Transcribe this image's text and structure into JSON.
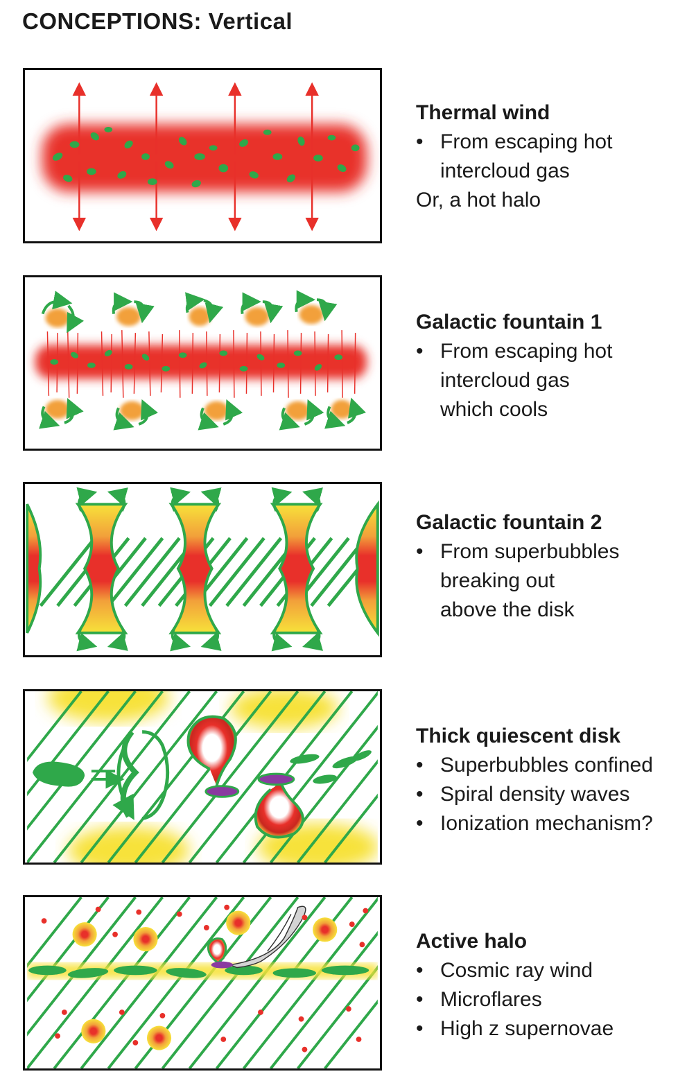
{
  "title": "CONCEPTIONS: Vertical",
  "panels": [
    {
      "heading": "Thermal wind",
      "bullets": [
        "From escaping hot",
        "intercloud gas"
      ],
      "bullet_continuation": true,
      "note": "Or, a hot halo"
    },
    {
      "heading": "Galactic fountain 1",
      "bullets": [
        "From escaping hot",
        "intercloud gas",
        "which cools"
      ],
      "bullet_continuation": true
    },
    {
      "heading": "Galactic fountain 2",
      "bullets": [
        "From superbubbles",
        "breaking out",
        "above the disk"
      ],
      "bullet_continuation": true
    },
    {
      "heading": "Thick quiescent disk",
      "bullets": [
        "Superbubbles confined",
        "Spiral density waves",
        "Ionization mechanism?"
      ]
    },
    {
      "heading": "Active halo",
      "bullets": [
        "Cosmic ray wind",
        "Microflares",
        "High z supernovae"
      ]
    }
  ],
  "colors": {
    "hot_gas": "#e8302a",
    "cold_cloud": "#2fa84a",
    "warm_gas": "#f2a03a",
    "yellow_glow": "#f7e23a",
    "purple": "#8a3aa0",
    "frame": "#111111"
  }
}
